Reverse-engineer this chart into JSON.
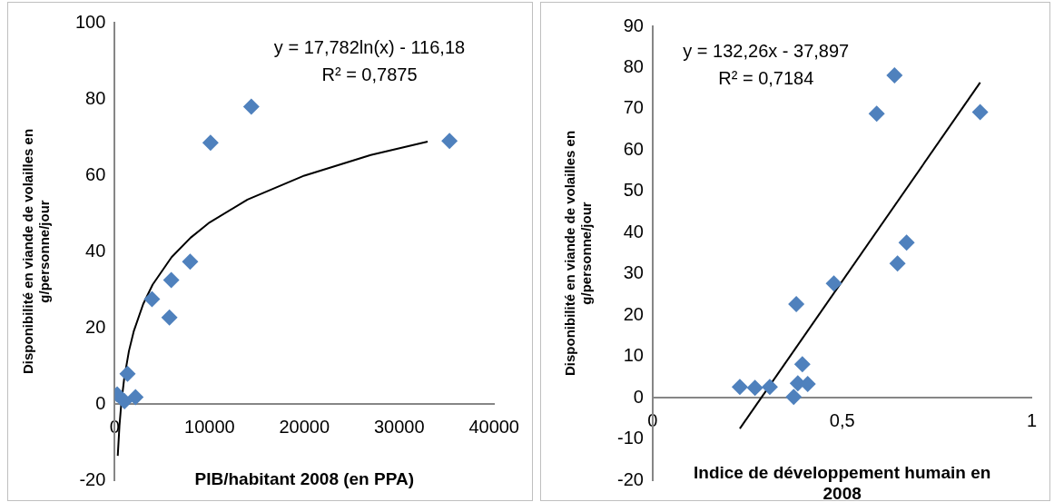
{
  "chart_data": [
    {
      "type": "scatter",
      "xlabel": "PIB/habitant 2008 (en PPA)",
      "ylabel": "Disponibilité en viande de volailles en g/personne/jour",
      "marker": "diamond",
      "grid": false,
      "legend": false,
      "xlim": [
        0,
        40000
      ],
      "xticks": [
        0,
        10000,
        20000,
        30000,
        40000
      ],
      "ylim": [
        -20,
        100
      ],
      "yticks": [
        -20,
        0,
        20,
        40,
        60,
        80,
        100
      ],
      "annotations": [
        "y = 17,782ln(x) - 116,18",
        "R² = 0,7875"
      ],
      "series": [
        {
          "color": "#4f81bd",
          "x": [
            35300,
            14400,
            10100,
            7950,
            5960,
            3930,
            5770,
            1350,
            260,
            2190,
            1030
          ],
          "values": [
            69,
            78,
            68.5,
            37.3,
            32.5,
            27.5,
            22.7,
            7.9,
            2.5,
            1.8,
            0.7
          ]
        },
        {
          "type": "line",
          "color": "#000000",
          "marker": "none",
          "x": [
            320,
            500,
            700,
            1000,
            1500,
            2000,
            3000,
            4000,
            6000,
            8000,
            10000,
            14000,
            20000,
            27000,
            33000
          ],
          "values": [
            -13.6,
            -5.7,
            0.3,
            6.7,
            13.9,
            19,
            26.2,
            31.3,
            38.5,
            43.6,
            47.6,
            53.6,
            59.9,
            65.3,
            68.8
          ]
        }
      ]
    },
    {
      "type": "scatter",
      "xlabel": "Indice de développement humain en 2008",
      "ylabel": "Disponibilité en viande de volailles en g/personne/jour",
      "marker": "diamond",
      "grid": false,
      "legend": false,
      "xlim": [
        0,
        1
      ],
      "xticks": [
        0,
        {
          "value": 0.5,
          "label": "0,5"
        },
        1
      ],
      "ylim": [
        -20,
        90
      ],
      "yticks": [
        -20,
        -10,
        0,
        10,
        20,
        30,
        40,
        50,
        60,
        70,
        80,
        90
      ],
      "annotations": [
        "y = 132,26x - 37,897",
        "R² = 0,7184"
      ],
      "series": [
        {
          "color": "#4f81bd",
          "x": [
            0.23,
            0.27,
            0.309,
            0.379,
            0.395,
            0.383,
            0.409,
            0.372,
            0.478,
            0.591,
            0.638,
            0.646,
            0.67,
            0.864
          ],
          "values": [
            2.6,
            2.4,
            2.6,
            22.7,
            8.1,
            3.5,
            3.3,
            0.2,
            27.7,
            68.8,
            78.1,
            32.5,
            37.6,
            69.2
          ]
        },
        {
          "type": "line",
          "color": "#000000",
          "marker": "none",
          "x": [
            0.23,
            0.864
          ],
          "values": [
            -7.5,
            76.4
          ]
        }
      ]
    }
  ]
}
